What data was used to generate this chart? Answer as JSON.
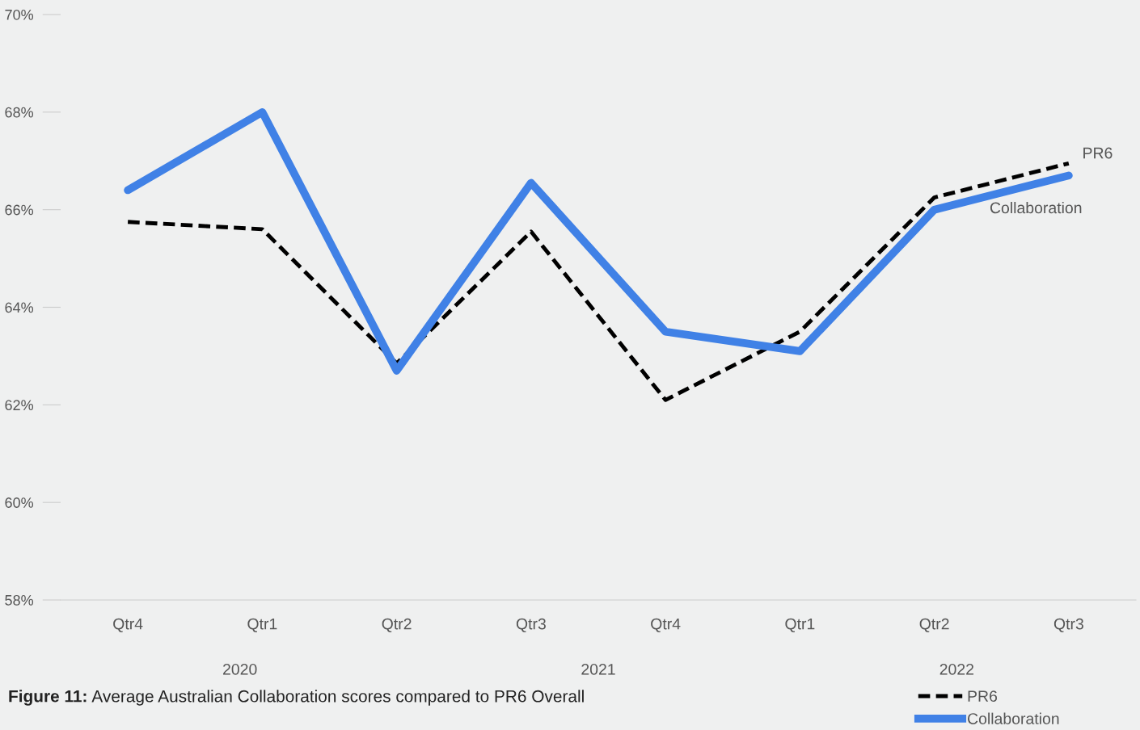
{
  "chart_data": {
    "type": "line",
    "title": "Figure 11: Average Australian Collaboration scores compared to PR6 Overall",
    "categories": [
      "Qtr4",
      "Qtr1",
      "Qtr2",
      "Qtr3",
      "Qtr4",
      "Qtr1",
      "Qtr2",
      "Qtr3"
    ],
    "series": [
      {
        "name": "PR6",
        "color": "#000000",
        "line_style": "dashed",
        "values": [
          65.75,
          65.6,
          62.85,
          65.55,
          62.1,
          63.5,
          66.25,
          66.95
        ]
      },
      {
        "name": "Collaboration",
        "color": "#4081e6",
        "line_style": "solid",
        "values": [
          66.4,
          68.0,
          62.7,
          66.55,
          63.5,
          63.1,
          66.0,
          66.7
        ]
      }
    ],
    "annotations": [
      "2020",
      "2021",
      "2022"
    ],
    "ylim": [
      58,
      70
    ],
    "yticks": [
      {
        "value": 58,
        "label": "58%"
      },
      {
        "value": 60,
        "label": "60%"
      },
      {
        "value": 62,
        "label": "62%"
      },
      {
        "value": 64,
        "label": "64%"
      },
      {
        "value": 66,
        "label": "66%"
      },
      {
        "value": 68,
        "label": "68%"
      },
      {
        "value": 70,
        "label": "70%"
      }
    ],
    "grid": false,
    "legend": "bottom right",
    "marker": "none"
  }
}
